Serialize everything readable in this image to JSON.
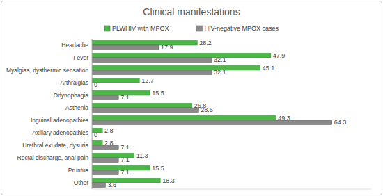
{
  "chart_data": {
    "type": "bar",
    "title": "Clinical manifestations",
    "orientation": "horizontal",
    "categories": [
      "Headache",
      "Fever",
      "Myalgias, dysthermic sensation",
      "Arthralgias",
      "Odynophagia",
      "Asthenia",
      "Inguinal adenopathies",
      "Axillary adenopathies",
      "Urethral exudate, dysuria",
      "Rectal discharge, anal pain",
      "Pruritus",
      "Other"
    ],
    "series": [
      {
        "name": "PLWHIV with MPOX",
        "color": "#4db848",
        "values": [
          28.2,
          47.9,
          45.1,
          12.7,
          15.5,
          26.8,
          49.3,
          2.8,
          2.8,
          11.3,
          15.5,
          18.3
        ]
      },
      {
        "name": "HIV-negative MPOX cases",
        "color": "#8a8a8a",
        "values": [
          17.9,
          32.1,
          32.1,
          0,
          7.1,
          28.6,
          64.3,
          0,
          7.1,
          7.1,
          7.1,
          3.6
        ]
      }
    ],
    "ylim": [
      0,
      75
    ],
    "data_labels": true,
    "tick_labels": "x",
    "legend": "top",
    "grid": false
  }
}
